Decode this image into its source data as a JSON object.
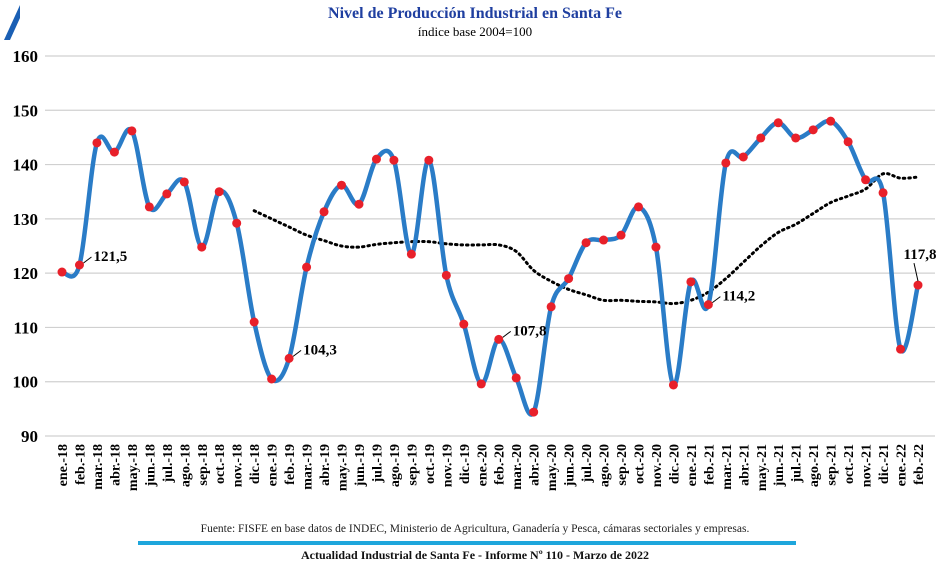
{
  "chart_data": {
    "type": "line",
    "title": "Nivel de Producción Industrial en Santa Fe",
    "subtitle": "índice base 2004=100",
    "ylim": [
      90,
      160
    ],
    "yticks": [
      90,
      100,
      110,
      120,
      130,
      140,
      150,
      160
    ],
    "grid": true,
    "categories": [
      "ene.-18",
      "feb.-18",
      "mar.-18",
      "abr.-18",
      "may.-18",
      "jun.-18",
      "jul.-18",
      "ago.-18",
      "sep.-18",
      "oct.-18",
      "nov.-18",
      "dic.-18",
      "ene.-19",
      "feb.-19",
      "mar.-19",
      "abr.-19",
      "may.-19",
      "jun.-19",
      "jul.-19",
      "ago.-19",
      "sep.-19",
      "oct.-19",
      "nov.-19",
      "dic.-19",
      "ene.-20",
      "feb.-20",
      "mar.-20",
      "abr.-20",
      "may.-20",
      "jun.-20",
      "jul.-20",
      "ago.-20",
      "sep.-20",
      "oct.-20",
      "nov.-20",
      "dic.-20",
      "ene.-21",
      "feb.-21",
      "mar.-21",
      "abr.-21",
      "may.-21",
      "jun.-21",
      "jul.-21",
      "ago.-21",
      "sep.-21",
      "oct.-21",
      "nov.-21",
      "dic.-21",
      "ene.-22",
      "feb.-22"
    ],
    "series": [
      {
        "style": "solid",
        "color": "#2a7cc7",
        "marker_color": "#e8202a",
        "values": [
          120.2,
          121.5,
          144.0,
          142.3,
          146.2,
          132.2,
          134.6,
          136.8,
          124.8,
          135.0,
          129.2,
          111.0,
          100.5,
          104.3,
          121.1,
          131.3,
          136.2,
          132.7,
          141.0,
          140.8,
          123.5,
          140.8,
          119.6,
          110.6,
          99.6,
          107.8,
          100.7,
          94.4,
          113.8,
          119.0,
          125.6,
          126.1,
          127.0,
          132.2,
          124.8,
          99.4,
          118.4,
          114.2,
          140.3,
          141.4,
          144.9,
          147.7,
          144.9,
          146.4,
          148.0,
          144.2,
          137.2,
          134.8,
          106.0,
          117.8
        ]
      },
      {
        "style": "dotted",
        "color": "#000000",
        "values": [
          null,
          null,
          null,
          null,
          null,
          null,
          null,
          null,
          null,
          null,
          null,
          131.5,
          130.0,
          128.5,
          127.0,
          126.0,
          125.0,
          124.8,
          125.3,
          125.6,
          125.8,
          125.8,
          125.4,
          125.2,
          125.2,
          125.2,
          124.0,
          120.5,
          118.5,
          117.0,
          116.0,
          115.0,
          115.0,
          114.8,
          114.7,
          114.4,
          115.0,
          116.5,
          119.0,
          122.0,
          125.0,
          127.5,
          129.0,
          131.0,
          133.0,
          134.2,
          135.5,
          138.3,
          137.5,
          137.7
        ]
      }
    ],
    "annotations": [
      {
        "category": "feb.-18",
        "text": "121,5"
      },
      {
        "category": "feb.-19",
        "text": "104,3"
      },
      {
        "category": "feb.-20",
        "text": "107,8"
      },
      {
        "category": "feb.-21",
        "text": "114,2"
      },
      {
        "category": "feb.-22",
        "text": "117,8"
      }
    ]
  },
  "source": "Fuente: FISFE en base datos de INDEC, Ministerio de Agricultura, Ganadería y Pesca, cámaras sectoriales y empresas.",
  "footer": "Actualidad Industrial de Santa Fe - Informe Nº 110 - Marzo de 2022"
}
